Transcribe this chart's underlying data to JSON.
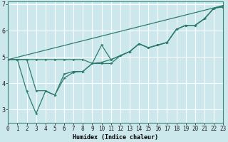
{
  "xlabel": "Humidex (Indice chaleur)",
  "bg_color": "#cce8ec",
  "grid_color": "#ffffff",
  "line_color": "#2d7d6e",
  "x_values": [
    0,
    1,
    2,
    3,
    4,
    5,
    6,
    7,
    8,
    9,
    10,
    11,
    12,
    13,
    14,
    15,
    16,
    17,
    18,
    19,
    20,
    21,
    22,
    23
  ],
  "line1": [
    4.9,
    4.9,
    4.9,
    4.9,
    4.9,
    4.9,
    4.9,
    4.9,
    4.9,
    4.75,
    4.75,
    4.75,
    5.05,
    5.2,
    5.5,
    5.35,
    5.45,
    5.55,
    6.05,
    6.2,
    6.2,
    6.45,
    6.85,
    6.9
  ],
  "line2": [
    4.9,
    4.9,
    4.9,
    3.72,
    3.72,
    3.55,
    4.35,
    4.45,
    4.45,
    4.75,
    5.45,
    4.9,
    5.05,
    5.2,
    5.5,
    5.35,
    5.45,
    5.55,
    6.05,
    6.2,
    6.2,
    6.45,
    6.85,
    6.9
  ],
  "line3": [
    4.9,
    4.9,
    3.7,
    2.85,
    3.7,
    3.55,
    4.2,
    4.42,
    4.45,
    4.75,
    4.8,
    4.9,
    5.05,
    5.2,
    5.5,
    5.35,
    5.45,
    5.55,
    6.05,
    6.2,
    6.2,
    6.45,
    6.85,
    6.95
  ],
  "trend_x": [
    0,
    23
  ],
  "trend_y": [
    4.9,
    6.95
  ],
  "ylim": [
    2.5,
    7.1
  ],
  "yticks": [
    3,
    4,
    5,
    6,
    7
  ],
  "xlim": [
    0,
    23
  ],
  "xticks": [
    0,
    1,
    2,
    3,
    4,
    5,
    6,
    7,
    8,
    9,
    10,
    11,
    12,
    13,
    14,
    15,
    16,
    17,
    18,
    19,
    20,
    21,
    22,
    23
  ],
  "xlabel_fontsize": 6,
  "tick_fontsize": 5.5
}
